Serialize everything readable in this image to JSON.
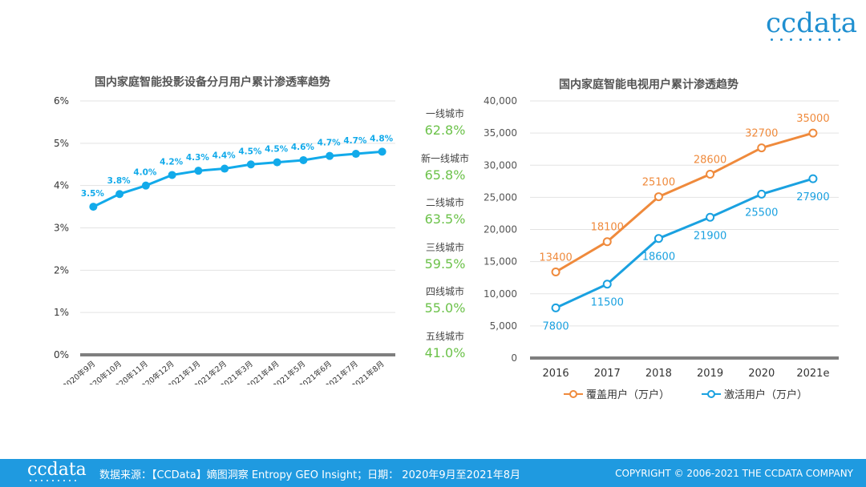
{
  "brand": {
    "logo_text": "ccdata"
  },
  "chart_data": [
    {
      "type": "line",
      "title": "国内家庭智能投影设备分月用户累计渗透率趋势",
      "categories": [
        "2020年9月",
        "2020年10月",
        "2020年11月",
        "2020年12月",
        "2021年1月",
        "2021年2月",
        "2021年3月",
        "2021年4月",
        "2021年5月",
        "2021年6月",
        "2021年7月",
        "2021年8月"
      ],
      "values": [
        3.5,
        3.8,
        4.0,
        4.25,
        4.35,
        4.4,
        4.5,
        4.55,
        4.6,
        4.7,
        4.75,
        4.8
      ],
      "data_labels": [
        "3.5%",
        "3.8%",
        "4.0%",
        "4.2%",
        "4.3%",
        "4.4%",
        "4.5%",
        "4.5%",
        "4.6%",
        "4.7%",
        "4.7%",
        "4.8%"
      ],
      "y_ticks": [
        "0%",
        "1%",
        "2%",
        "3%",
        "4%",
        "5%",
        "6%"
      ],
      "ylim": [
        0,
        6
      ],
      "color": "#12aaea",
      "grid": true
    },
    {
      "type": "line",
      "title": "国内家庭智能电视用户累计渗透趋势",
      "categories": [
        "2016",
        "2017",
        "2018",
        "2019",
        "2020",
        "2021e"
      ],
      "series": [
        {
          "name": "覆盖用户（万户）",
          "values": [
            13400,
            18100,
            25100,
            28600,
            32700,
            35000
          ],
          "color": "#ef8a3c"
        },
        {
          "name": "激活用户（万户）",
          "values": [
            7800,
            11500,
            18600,
            21900,
            25500,
            27900
          ],
          "color": "#1aa1e0"
        }
      ],
      "y_ticks": [
        "0",
        "5,000",
        "10,000",
        "15,000",
        "20,000",
        "25,000",
        "30,000",
        "35,000",
        "40,000"
      ],
      "ylim": [
        0,
        40000
      ],
      "legend": "bottom",
      "grid": true
    }
  ],
  "city_penetration": [
    {
      "city": "一线城市",
      "value": "62.8%"
    },
    {
      "city": "新一线城市",
      "value": "65.8%"
    },
    {
      "city": "二线城市",
      "value": "63.5%"
    },
    {
      "city": "三线城市",
      "value": "59.5%"
    },
    {
      "city": "四线城市",
      "value": "55.0%"
    },
    {
      "city": "五线城市",
      "value": "41.0%"
    }
  ],
  "footer": {
    "source": "数据来源：【CCData】嫡图洞察 Entropy GEO Insight；日期： 2020年9月至2021年8月",
    "copyright": "COPYRIGHT © 2006-2021  THE CCDATA COMPANY"
  },
  "colors": {
    "brand_blue": "#1f9ae0",
    "green": "#6cc24a"
  }
}
